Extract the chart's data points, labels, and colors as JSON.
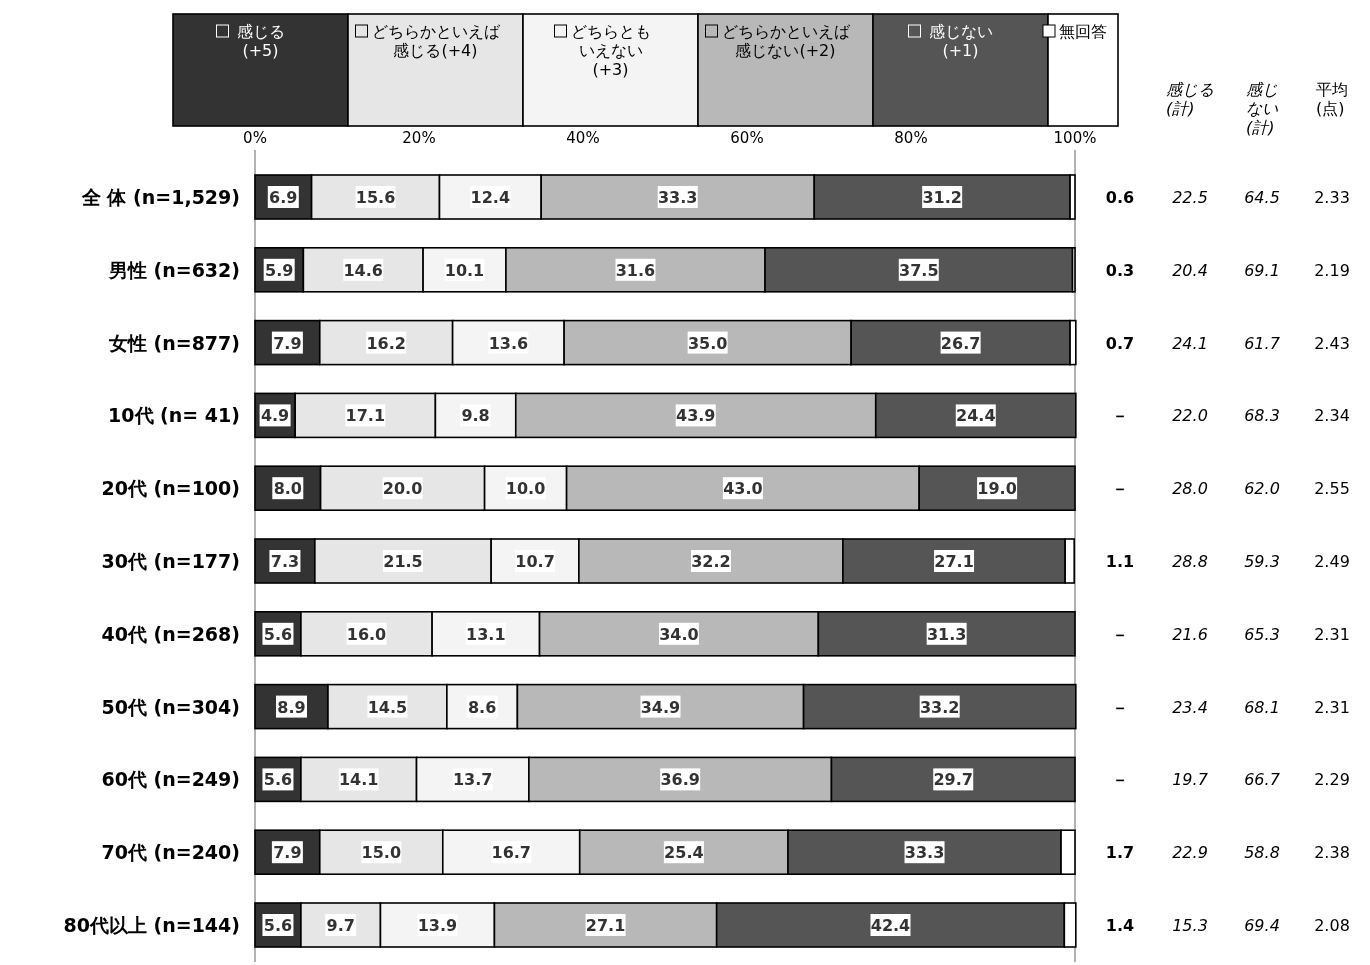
{
  "chart_data": [
    {
      "type": "bar",
      "orientation": "horizontal",
      "stacked": true,
      "legend": "top",
      "categories": [
        "全 体 (n=1,529)",
        "男性 (n=632)",
        "女性 (n=877)",
        "10代 (n= 41)",
        "20代 (n=100)",
        "30代 (n=177)",
        "40代 (n=268)",
        "50代 (n=304)",
        "60代 (n=249)",
        "70代 (n=240)",
        "80代以上 (n=144)"
      ],
      "xlim": [
        0,
        100
      ],
      "xticks": [
        {
          "value": 0,
          "label": "0%"
        },
        {
          "value": 20,
          "label": "20%"
        },
        {
          "value": 40,
          "label": "40%"
        },
        {
          "value": 60,
          "label": "60%"
        },
        {
          "value": 80,
          "label": "80%"
        },
        {
          "value": 100,
          "label": "100%"
        }
      ],
      "series": [
        {
          "name": "感じる(+5)",
          "color": "#333333",
          "values": [
            6.9,
            5.9,
            7.9,
            4.9,
            8.0,
            7.3,
            5.6,
            8.9,
            5.6,
            7.9,
            5.6
          ],
          "value_labels": [
            "6.9",
            "5.9",
            "7.9",
            "4.9",
            "8.0",
            "7.3",
            "5.6",
            "8.9",
            "5.6",
            "7.9",
            "5.6"
          ]
        },
        {
          "name": "どちらかといえば感じる(+4)",
          "color": "#e6e6e6",
          "values": [
            15.6,
            14.6,
            16.2,
            17.1,
            20.0,
            21.5,
            16.0,
            14.5,
            14.1,
            15.0,
            9.7
          ],
          "value_labels": [
            "15.6",
            "14.6",
            "16.2",
            "17.1",
            "20.0",
            "21.5",
            "16.0",
            "14.5",
            "14.1",
            "15.0",
            "9.7"
          ]
        },
        {
          "name": "どちらともいえない(+3)",
          "color": "#f4f4f4",
          "values": [
            12.4,
            10.1,
            13.6,
            9.8,
            10.0,
            10.7,
            13.1,
            8.6,
            13.7,
            16.7,
            13.9
          ],
          "value_labels": [
            "12.4",
            "10.1",
            "13.6",
            "9.8",
            "10.0",
            "10.7",
            "13.1",
            "8.6",
            "13.7",
            "16.7",
            "13.9"
          ]
        },
        {
          "name": "どちらかといえば感じない(+2)",
          "color": "#b8b8b8",
          "values": [
            33.3,
            31.6,
            35.0,
            43.9,
            43.0,
            32.2,
            34.0,
            34.9,
            36.9,
            25.4,
            27.1
          ],
          "value_labels": [
            "33.3",
            "31.6",
            "35.0",
            "43.9",
            "43.0",
            "32.2",
            "34.0",
            "34.9",
            "36.9",
            "25.4",
            "27.1"
          ]
        },
        {
          "name": "感じない(+1)",
          "color": "#555555",
          "values": [
            31.2,
            37.5,
            26.7,
            24.4,
            19.0,
            27.1,
            31.3,
            33.2,
            29.7,
            33.3,
            42.4
          ],
          "value_labels": [
            "31.2",
            "37.5",
            "26.7",
            "24.4",
            "19.0",
            "27.1",
            "31.3",
            "33.2",
            "29.7",
            "33.3",
            "42.4"
          ]
        },
        {
          "name": "無回答",
          "color": "#ffffff",
          "values": [
            0.6,
            0.3,
            0.7,
            null,
            null,
            1.1,
            null,
            null,
            null,
            1.7,
            1.4
          ],
          "value_labels": [
            "0.6",
            "0.3",
            "0.7",
            "－",
            "－",
            "1.1",
            "－",
            "－",
            "－",
            "1.7",
            "1.4"
          ]
        }
      ]
    },
    {
      "type": "other",
      "title": "感じる(計)",
      "annotations": [
        "22.5",
        "20.4",
        "24.1",
        "22.0",
        "28.0",
        "28.8",
        "21.6",
        "23.4",
        "19.7",
        "22.9",
        "15.3"
      ]
    },
    {
      "type": "other",
      "title": "感じない(計)",
      "annotations": [
        "64.5",
        "69.1",
        "61.7",
        "68.3",
        "62.0",
        "59.3",
        "65.3",
        "68.1",
        "66.7",
        "58.8",
        "69.4"
      ]
    },
    {
      "type": "other",
      "title": "平均(点)",
      "annotations": [
        "2.33",
        "2.19",
        "2.43",
        "2.34",
        "2.55",
        "2.49",
        "2.31",
        "2.31",
        "2.29",
        "2.38",
        "2.08"
      ]
    }
  ]
}
